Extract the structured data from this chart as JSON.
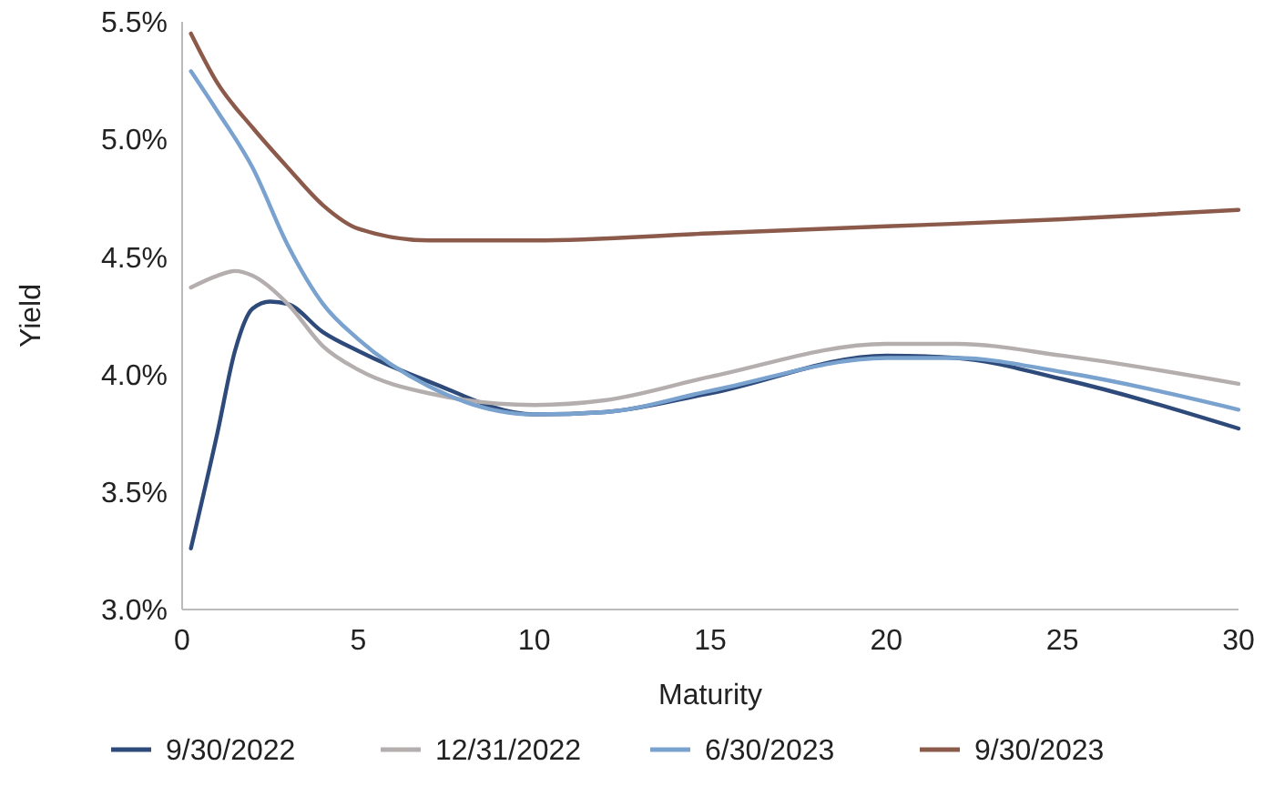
{
  "chart_data": {
    "type": "line",
    "xlabel": "Maturity",
    "ylabel": "Yield",
    "xlim": [
      0,
      30
    ],
    "xticks": [
      0,
      5,
      10,
      15,
      20,
      25,
      30
    ],
    "ylim": [
      3.0,
      5.5
    ],
    "yticks": [
      {
        "value": 3.0,
        "label": "3.0%"
      },
      {
        "value": 3.5,
        "label": "3.5%"
      },
      {
        "value": 4.0,
        "label": "4.0%"
      },
      {
        "value": 4.5,
        "label": "4.5%"
      },
      {
        "value": 5.0,
        "label": "5.0%"
      },
      {
        "value": 5.5,
        "label": "5.5%"
      }
    ],
    "grid": false,
    "legend": "bottom",
    "marker": "none",
    "line_style": "solid",
    "series": [
      {
        "name": "9/30/2022",
        "color": "#2d4a7a",
        "x": [
          0.25,
          1,
          1.5,
          2,
          2.5,
          3,
          4,
          5,
          7,
          10,
          12,
          15,
          20,
          22,
          25,
          30
        ],
        "values": [
          3.26,
          3.75,
          4.1,
          4.28,
          4.31,
          4.3,
          4.18,
          4.1,
          3.97,
          3.83,
          3.84,
          3.92,
          4.08,
          4.07,
          3.98,
          3.77
        ]
      },
      {
        "name": "12/31/2022",
        "color": "#b5aeae",
        "x": [
          0.25,
          1,
          1.5,
          2,
          3,
          4,
          5,
          7,
          10,
          12,
          15,
          20,
          22,
          25,
          30
        ],
        "values": [
          4.37,
          4.42,
          4.44,
          4.42,
          4.3,
          4.12,
          4.02,
          3.92,
          3.87,
          3.89,
          3.99,
          4.13,
          4.13,
          4.08,
          3.96
        ]
      },
      {
        "name": "6/30/2023",
        "color": "#7aa2cf",
        "x": [
          0.25,
          1,
          2,
          3,
          4,
          5,
          7,
          10,
          12,
          15,
          20,
          22,
          25,
          30
        ],
        "values": [
          5.29,
          5.12,
          4.88,
          4.55,
          4.3,
          4.15,
          3.95,
          3.83,
          3.84,
          3.93,
          4.07,
          4.07,
          4.01,
          3.85
        ]
      },
      {
        "name": "9/30/2023",
        "color": "#8b5a4a",
        "x": [
          0.25,
          1,
          2,
          3,
          4,
          5,
          7,
          10,
          15,
          20,
          25,
          30
        ],
        "values": [
          5.45,
          5.24,
          5.05,
          4.88,
          4.72,
          4.62,
          4.57,
          4.57,
          4.6,
          4.63,
          4.66,
          4.7
        ]
      }
    ]
  }
}
